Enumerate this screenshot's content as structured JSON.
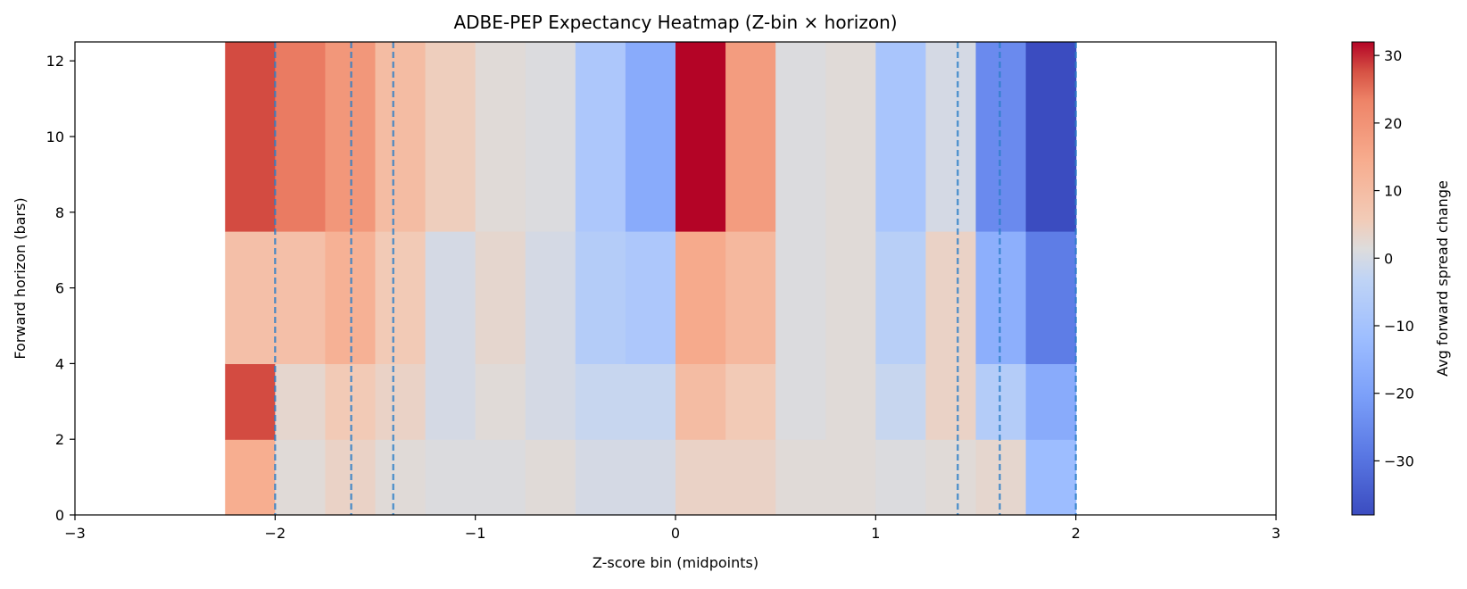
{
  "chart_data": {
    "type": "heatmap",
    "title": "ADBE-PEP Expectancy Heatmap (Z-bin × horizon)",
    "xlabel": "Z-score bin (midpoints)",
    "ylabel": "Forward horizon (bars)",
    "xlim": [
      -3,
      3
    ],
    "ylim": [
      0,
      12.5
    ],
    "x_ticks": [
      -3,
      -2,
      -1,
      0,
      1,
      2,
      3
    ],
    "x_tick_labels": [
      "−3",
      "−2",
      "−1",
      "0",
      "1",
      "2",
      "3"
    ],
    "y_ticks": [
      0,
      2,
      4,
      6,
      8,
      10,
      12
    ],
    "y_tick_labels": [
      "0",
      "2",
      "4",
      "6",
      "8",
      "10",
      "12"
    ],
    "x_bin_edges": [
      -2.25,
      -2.0,
      -1.75,
      -1.5,
      -1.25,
      -1.0,
      -0.75,
      -0.5,
      -0.25,
      0.0,
      0.25,
      0.5,
      0.75,
      1.0,
      1.25,
      1.5,
      1.75,
      2.0
    ],
    "y_bin_edges": [
      0,
      2,
      4,
      7.5,
      12.5
    ],
    "values": [
      [
        14,
        2,
        4,
        2,
        1,
        1,
        2,
        0,
        0,
        4,
        4,
        2,
        2,
        1,
        2,
        3,
        -12
      ],
      [
        28,
        3,
        6,
        4,
        0,
        2,
        0,
        -2,
        -2,
        10,
        6,
        1,
        2,
        -2,
        4,
        -6,
        -17
      ],
      [
        9,
        9,
        13,
        6,
        0,
        3,
        0,
        -6,
        -8,
        15,
        11,
        1,
        2,
        -5,
        4,
        -16,
        -28
      ],
      [
        28,
        24,
        19,
        10,
        5,
        2,
        1,
        -8,
        -17,
        32,
        18,
        1,
        2,
        -9,
        0,
        -25,
        -38
      ]
    ],
    "dashed_lines_x": [
      -2.0,
      -1.62,
      -1.41,
      1.41,
      1.62,
      2.0
    ],
    "colorbar": {
      "label": "Avg forward spread change",
      "min": -38,
      "max": 32,
      "ticks": [
        30,
        20,
        10,
        0,
        -10,
        -20,
        -30
      ],
      "tick_labels": [
        "30",
        "20",
        "10",
        "0",
        "−10",
        "−20",
        "−30"
      ],
      "colormap": "coolwarm"
    }
  }
}
